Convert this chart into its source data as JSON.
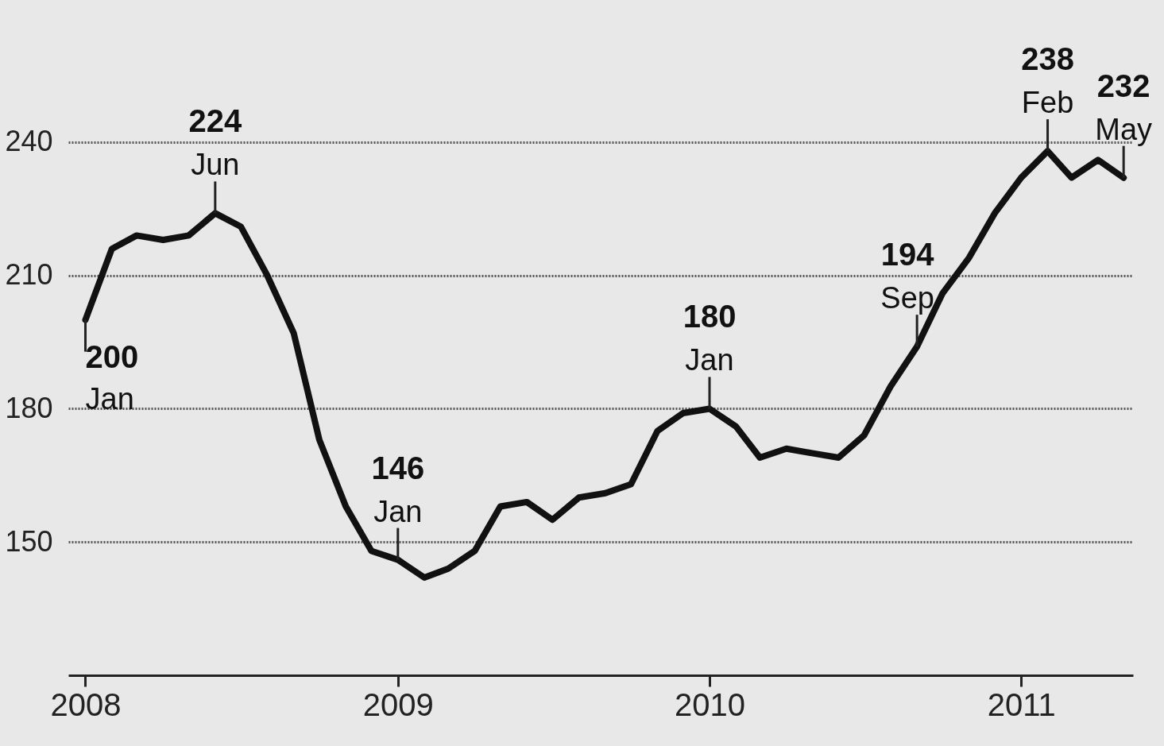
{
  "chart_data": {
    "type": "line",
    "x": [
      "2008-01",
      "2008-02",
      "2008-03",
      "2008-04",
      "2008-05",
      "2008-06",
      "2008-07",
      "2008-08",
      "2008-09",
      "2008-10",
      "2008-11",
      "2008-12",
      "2009-01",
      "2009-02",
      "2009-03",
      "2009-04",
      "2009-05",
      "2009-06",
      "2009-07",
      "2009-08",
      "2009-09",
      "2009-10",
      "2009-11",
      "2009-12",
      "2010-01",
      "2010-02",
      "2010-03",
      "2010-04",
      "2010-05",
      "2010-06",
      "2010-07",
      "2010-08",
      "2010-09",
      "2010-10",
      "2010-11",
      "2010-12",
      "2011-01",
      "2011-02",
      "2011-03",
      "2011-04",
      "2011-05"
    ],
    "series": [
      {
        "color": "#111111",
        "values": [
          200,
          216,
          219,
          218,
          219,
          224,
          221,
          210,
          197,
          173,
          158,
          148,
          146,
          142,
          144,
          148,
          158,
          159,
          155,
          160,
          161,
          163,
          175,
          179,
          180,
          176,
          169,
          171,
          170,
          169,
          174,
          185,
          194,
          206,
          214,
          224,
          232,
          238,
          232,
          236,
          232
        ]
      }
    ],
    "xlim": [
      "2007-12-12",
      "2011-05-12"
    ],
    "xticks": [
      {
        "value": "2008",
        "label": "2008"
      },
      {
        "value": "2009",
        "label": "2009"
      },
      {
        "value": "2010",
        "label": "2010"
      },
      {
        "value": "2011",
        "label": "2011"
      }
    ],
    "ylim": [
      120,
      272
    ],
    "yticks": [
      150,
      180,
      210,
      240
    ],
    "grid": "y",
    "marker": "none",
    "line_style": "solid",
    "legend": false,
    "annotations": [
      {
        "text": "200",
        "x": "2008-01",
        "y": 200
      },
      {
        "text": "Jan",
        "x": "2008-01",
        "y": 200
      },
      {
        "text": "224",
        "x": "2008-06",
        "y": 224
      },
      {
        "text": "Jun",
        "x": "2008-06",
        "y": 224
      },
      {
        "text": "146",
        "x": "2009-01",
        "y": 146
      },
      {
        "text": "Jan",
        "x": "2009-01",
        "y": 146
      },
      {
        "text": "180",
        "x": "2010-01",
        "y": 180
      },
      {
        "text": "Jan",
        "x": "2010-01",
        "y": 180
      },
      {
        "text": "194",
        "x": "2010-09",
        "y": 194
      },
      {
        "text": "Sep",
        "x": "2010-09",
        "y": 194
      },
      {
        "text": "238",
        "x": "2011-02",
        "y": 238
      },
      {
        "text": "Feb",
        "x": "2011-02",
        "y": 238
      },
      {
        "text": "232",
        "x": "2011-05",
        "y": 232
      },
      {
        "text": "May",
        "x": "2011-05",
        "y": 232
      }
    ]
  }
}
